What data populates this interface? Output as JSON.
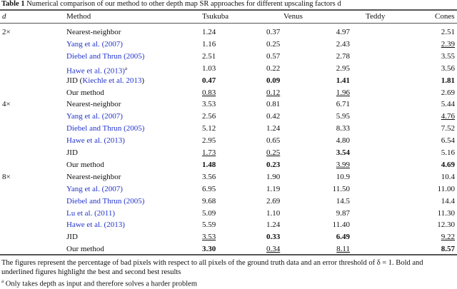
{
  "caption": {
    "label": "Table 1",
    "text": "Numerical comparison of our method to other depth map SR approaches for different upscaling factors d"
  },
  "headers": [
    "d",
    "Method",
    "Tsukuba",
    "Venus",
    "Teddy",
    "Cones"
  ],
  "rows": [
    {
      "d": "2×",
      "method": "Nearest-neighbor",
      "link": false,
      "cells": [
        {
          "v": "1.24",
          "s": ""
        },
        {
          "v": "0.37",
          "s": ""
        },
        {
          "v": "4.97",
          "s": ""
        },
        {
          "v": "2.51",
          "s": ""
        }
      ]
    },
    {
      "d": "",
      "method": "Yang et al. (2007)",
      "link": true,
      "cells": [
        {
          "v": "1.16",
          "s": ""
        },
        {
          "v": "0.25",
          "s": ""
        },
        {
          "v": "2.43",
          "s": ""
        },
        {
          "v": "2.39",
          "s": "u"
        }
      ]
    },
    {
      "d": "",
      "method": "Diebel and Thrun (2005)",
      "link": true,
      "cells": [
        {
          "v": "2.51",
          "s": ""
        },
        {
          "v": "0.57",
          "s": ""
        },
        {
          "v": "2.78",
          "s": ""
        },
        {
          "v": "3.55",
          "s": ""
        }
      ]
    },
    {
      "d": "",
      "method": "Hawe et al. (2013)",
      "sup": "a",
      "link": true,
      "cells": [
        {
          "v": "1.03",
          "s": ""
        },
        {
          "v": "0.22",
          "s": ""
        },
        {
          "v": "2.95",
          "s": ""
        },
        {
          "v": "3.56",
          "s": ""
        }
      ]
    },
    {
      "d": "",
      "method": "JID",
      "method_link": "Kiechle et al. 2013",
      "link": false,
      "cells": [
        {
          "v": "0.47",
          "s": "b"
        },
        {
          "v": "0.09",
          "s": "b"
        },
        {
          "v": "1.41",
          "s": "b"
        },
        {
          "v": "1.81",
          "s": "b"
        }
      ]
    },
    {
      "d": "",
      "method": "Our method",
      "link": false,
      "cells": [
        {
          "v": "0.83",
          "s": "u"
        },
        {
          "v": "0.12",
          "s": "u"
        },
        {
          "v": "1.96",
          "s": "u"
        },
        {
          "v": "2.69",
          "s": ""
        }
      ]
    },
    {
      "d": "4×",
      "method": "Nearest-neighbor",
      "link": false,
      "cells": [
        {
          "v": "3.53",
          "s": ""
        },
        {
          "v": "0.81",
          "s": ""
        },
        {
          "v": "6.71",
          "s": ""
        },
        {
          "v": "5.44",
          "s": ""
        }
      ]
    },
    {
      "d": "",
      "method": "Yang et al. (2007)",
      "link": true,
      "cells": [
        {
          "v": "2.56",
          "s": ""
        },
        {
          "v": "0.42",
          "s": ""
        },
        {
          "v": "5.95",
          "s": ""
        },
        {
          "v": "4.76",
          "s": "u"
        }
      ]
    },
    {
      "d": "",
      "method": "Diebel and Thrun (2005)",
      "link": true,
      "cells": [
        {
          "v": "5.12",
          "s": ""
        },
        {
          "v": "1.24",
          "s": ""
        },
        {
          "v": "8.33",
          "s": ""
        },
        {
          "v": "7.52",
          "s": ""
        }
      ]
    },
    {
      "d": "",
      "method": "Hawe et al. (2013)",
      "link": true,
      "cells": [
        {
          "v": "2.95",
          "s": ""
        },
        {
          "v": "0.65",
          "s": ""
        },
        {
          "v": "4.80",
          "s": ""
        },
        {
          "v": "6.54",
          "s": ""
        }
      ]
    },
    {
      "d": "",
      "method": "JID",
      "link": false,
      "cells": [
        {
          "v": "1.73",
          "s": "u"
        },
        {
          "v": "0.25",
          "s": "u"
        },
        {
          "v": "3.54",
          "s": "b"
        },
        {
          "v": "5.16",
          "s": ""
        }
      ]
    },
    {
      "d": "",
      "method": "Our method",
      "link": false,
      "cells": [
        {
          "v": "1.48",
          "s": "b"
        },
        {
          "v": "0.23",
          "s": "b"
        },
        {
          "v": "3.99",
          "s": "u"
        },
        {
          "v": "4.69",
          "s": "b"
        }
      ]
    },
    {
      "d": "8×",
      "method": "Nearest-neighbor",
      "link": false,
      "cells": [
        {
          "v": "3.56",
          "s": ""
        },
        {
          "v": "1.90",
          "s": ""
        },
        {
          "v": "10.9",
          "s": ""
        },
        {
          "v": "10.4",
          "s": ""
        }
      ]
    },
    {
      "d": "",
      "method": "Yang et al. (2007)",
      "link": true,
      "cells": [
        {
          "v": "6.95",
          "s": ""
        },
        {
          "v": "1.19",
          "s": ""
        },
        {
          "v": "11.50",
          "s": ""
        },
        {
          "v": "11.00",
          "s": ""
        }
      ]
    },
    {
      "d": "",
      "method": "Diebel and Thrun (2005)",
      "link": true,
      "cells": [
        {
          "v": "9.68",
          "s": ""
        },
        {
          "v": "2.69",
          "s": ""
        },
        {
          "v": "14.5",
          "s": ""
        },
        {
          "v": "14.4",
          "s": ""
        }
      ]
    },
    {
      "d": "",
      "method": "Lu et al. (2011)",
      "link": true,
      "cells": [
        {
          "v": "5.09",
          "s": ""
        },
        {
          "v": "1.10",
          "s": ""
        },
        {
          "v": "9.87",
          "s": ""
        },
        {
          "v": "11.30",
          "s": ""
        }
      ]
    },
    {
      "d": "",
      "method": "Hawe et al. (2013)",
      "link": true,
      "cells": [
        {
          "v": "5.59",
          "s": ""
        },
        {
          "v": "1.24",
          "s": ""
        },
        {
          "v": "11.40",
          "s": ""
        },
        {
          "v": "12.30",
          "s": ""
        }
      ]
    },
    {
      "d": "",
      "method": "JID",
      "link": false,
      "cells": [
        {
          "v": "3.53",
          "s": "u"
        },
        {
          "v": "0.33",
          "s": "b"
        },
        {
          "v": "6.49",
          "s": "b"
        },
        {
          "v": "9.22",
          "s": "u"
        }
      ]
    },
    {
      "d": "",
      "method": "Our method",
      "link": false,
      "cells": [
        {
          "v": "3.30",
          "s": "b"
        },
        {
          "v": "0.34",
          "s": "u"
        },
        {
          "v": "8.11",
          "s": "u"
        },
        {
          "v": "8.57",
          "s": "b"
        }
      ]
    }
  ],
  "notes": {
    "line1": "The figures represent the percentage of bad pixels with respect to all pixels of the ground truth data and an error threshold of δ = 1. Bold and",
    "line2": "underlined figures highlight the best and second best results",
    "footnote_mark": "a",
    "footnote": "Only takes depth as input and therefore solves a harder problem"
  },
  "colors": {
    "link": "#2233cc",
    "text": "#111111"
  }
}
